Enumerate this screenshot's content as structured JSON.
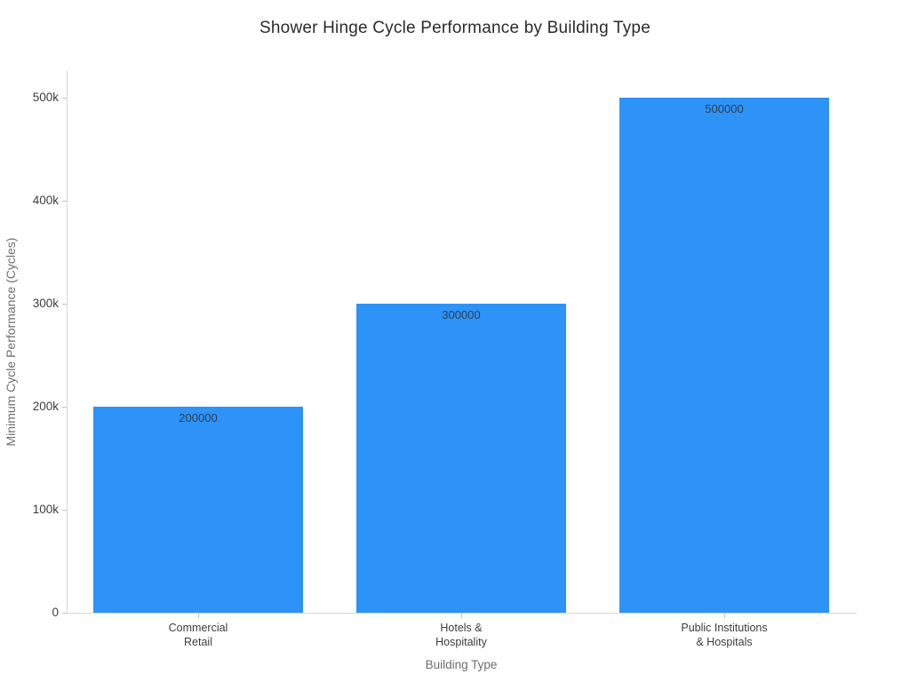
{
  "chart_data": {
    "type": "bar",
    "title": "Shower Hinge Cycle Performance by Building Type",
    "xlabel": "Building Type",
    "ylabel": "Minimum Cycle Performance (Cycles)",
    "categories": [
      "Commercial\nRetail",
      "Hotels &\nHospitality",
      "Public Institutions\n& Hospitals"
    ],
    "values": [
      200000,
      300000,
      500000
    ],
    "bar_value_labels": [
      "200000",
      "300000",
      "500000"
    ],
    "yticks": [
      {
        "value": 0,
        "label": "0"
      },
      {
        "value": 100000,
        "label": "100k"
      },
      {
        "value": 200000,
        "label": "200k"
      },
      {
        "value": 300000,
        "label": "300k"
      },
      {
        "value": 400000,
        "label": "400k"
      },
      {
        "value": 500000,
        "label": "500k"
      }
    ],
    "ylim": [
      0,
      526000
    ],
    "grid": false,
    "legend": "none",
    "colors": {
      "bar": "#2E93F7",
      "bar_value_label": "#2e3f52",
      "axis_line": "#d9d9d9",
      "tick_mark": "#c2c2c2",
      "tick_label": "#3d3d3d",
      "axis_title": "#6e6e6e",
      "title": "#2b2b2b",
      "background": "#ffffff"
    }
  }
}
